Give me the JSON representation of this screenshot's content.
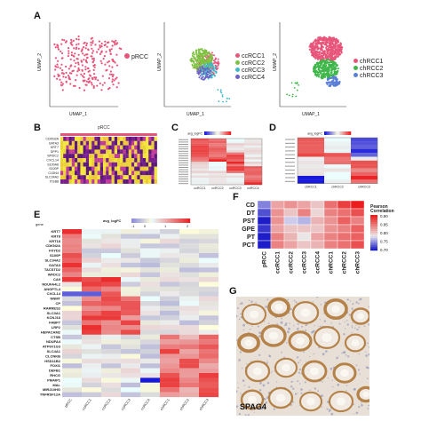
{
  "panels": {
    "A": {
      "letter": "A",
      "plots": [
        {
          "legend": [
            "pRCC"
          ],
          "colors": [
            "#e8557a"
          ],
          "xlabel": "UMAP_1",
          "ylabel": "UMAP_2"
        },
        {
          "legend": [
            "ccRCC1",
            "ccRCC2",
            "ccRCC3",
            "ccRCC4"
          ],
          "colors": [
            "#e8557a",
            "#7fc241",
            "#3fb8c8",
            "#6b62c7"
          ],
          "xlabel": "UMAP_1",
          "ylabel": "UMAP_2"
        },
        {
          "legend": [
            "chRCC1",
            "chRCC2",
            "chRCC3"
          ],
          "colors": [
            "#e8557a",
            "#3fb64a",
            "#5b7fd6"
          ],
          "xlabel": "UMAP_1",
          "ylabel": "UMAP_2"
        }
      ]
    },
    "B": {
      "letter": "B",
      "title": "pRCC",
      "genes": [
        "CDKN2A",
        "GATA3",
        "KRT7",
        "SPP1",
        "WFDC2",
        "CXCL14",
        "S100A6",
        "S100P",
        "CLDN4",
        "SLC34A2",
        "ITGB8"
      ]
    },
    "C": {
      "letter": "C",
      "legend_title": "avg_logFC",
      "columns": [
        "ccRCC1",
        "ccRCC2",
        "ccRCC3",
        "ccRCC4"
      ]
    },
    "D": {
      "letter": "D",
      "legend_title": "avg_logFC",
      "columns": [
        "chRCC1",
        "chRCC2",
        "chRCC3"
      ]
    },
    "E": {
      "letter": "E",
      "gene_label": "gene",
      "legend_title": "avg_logFC",
      "legend_ticks": [
        "-1",
        "0",
        "1",
        "2"
      ],
      "genes": [
        "KRT7",
        "KRT8",
        "KRT18",
        "CDKN2A",
        "FXYD2",
        "S100P",
        "SLC34A2",
        "GATA3",
        "TACSTD2",
        "WFDC2",
        "CA9",
        "NDUFA4L2",
        "ANGPTL4",
        "CXCL14",
        "NNMT",
        "CP",
        "RARRES2",
        "SLC3A1",
        "KCNJ16",
        "FABP7",
        "LRP2",
        "HEPACAM2",
        "CTSB",
        "NDUFA4",
        "ATP6V1G3",
        "SLC4A1",
        "CLCNKB",
        "HSD11B2",
        "FOXI1",
        "DEFB1",
        "RHCG",
        "PMAIP1",
        "MAL",
        "MIR210HG",
        "TNFRSF12A"
      ],
      "columns": [
        "pRCC",
        "ccRCC1",
        "ccRCC2",
        "ccRCC3",
        "ccRCC4",
        "chRCC1",
        "chRCC2",
        "chRCC3"
      ]
    },
    "F": {
      "letter": "F",
      "rows": [
        "CD",
        "DT",
        "PST",
        "GPE",
        "PT",
        "PCT"
      ],
      "columns": [
        "pRCC",
        "ccRCC1",
        "ccRCC2",
        "ccRCC3",
        "ccRCC4",
        "chRCC1",
        "chRCC2",
        "chRCC3"
      ],
      "legend_title": "Pearson Correlation",
      "legend_ticks": [
        "0.90",
        "0.85",
        "0.80",
        "0.75",
        "0.70"
      ],
      "values": [
        [
          0.74,
          0.82,
          0.83,
          0.82,
          0.8,
          0.85,
          0.88,
          0.9
        ],
        [
          0.72,
          0.83,
          0.8,
          0.84,
          0.79,
          0.84,
          0.85,
          0.87
        ],
        [
          0.7,
          0.83,
          0.77,
          0.76,
          0.81,
          0.83,
          0.86,
          0.84
        ],
        [
          0.71,
          0.82,
          0.8,
          0.8,
          0.8,
          0.83,
          0.84,
          0.86
        ],
        [
          0.7,
          0.84,
          0.81,
          0.78,
          0.82,
          0.84,
          0.85,
          0.86
        ],
        [
          0.7,
          0.84,
          0.82,
          0.8,
          0.81,
          0.84,
          0.85,
          0.87
        ]
      ]
    },
    "G": {
      "letter": "G",
      "caption": "SPAG4"
    }
  },
  "colors": {
    "red": "#e03030",
    "blue": "#2020c8",
    "white": "#ffffff",
    "yellow": "#f2e63a",
    "purple": "#7a1f8f"
  }
}
